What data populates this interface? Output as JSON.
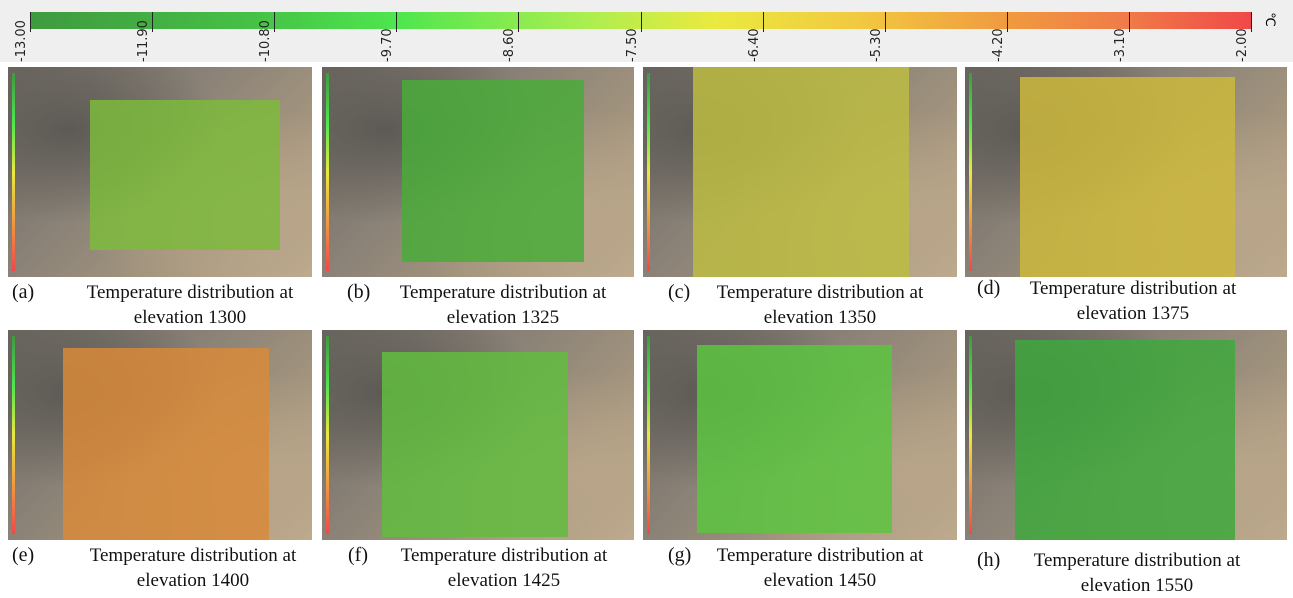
{
  "colorbar": {
    "ticks": [
      "-13.00",
      "-11.90",
      "-10.80",
      "-9.70",
      "-8.60",
      "-7.50",
      "-6.40",
      "-5.30",
      "-4.20",
      "-3.10",
      "-2.00"
    ],
    "unit": "℃"
  },
  "panels": [
    {
      "label": "(a)",
      "caption": [
        "Temperature distribution at",
        "elevation 1300"
      ]
    },
    {
      "label": "(b)",
      "caption": [
        "Temperature distribution at",
        "elevation 1325"
      ]
    },
    {
      "label": "(c)",
      "caption": [
        "Temperature distribution at",
        "elevation 1350"
      ]
    },
    {
      "label": "(d)",
      "caption": [
        "Temperature distribution at",
        "elevation 1375"
      ]
    },
    {
      "label": "(e)",
      "caption": [
        "Temperature distribution at",
        "elevation 1400"
      ]
    },
    {
      "label": "(f)",
      "caption": [
        "Temperature distribution at",
        "elevation 1425"
      ]
    },
    {
      "label": "(g)",
      "caption": [
        "Temperature distribution at",
        "elevation 1450"
      ]
    },
    {
      "label": "(h)",
      "caption": [
        "Temperature distribution at",
        "elevation 1550"
      ]
    }
  ]
}
